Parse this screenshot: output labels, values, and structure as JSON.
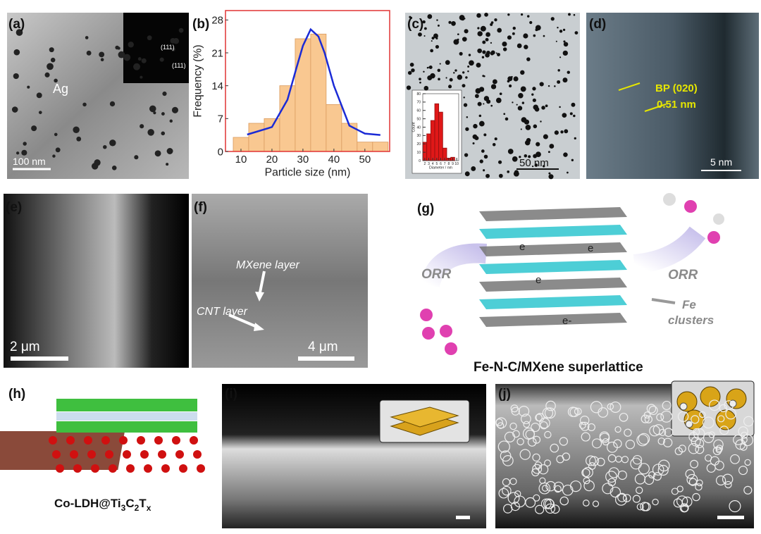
{
  "panels": {
    "a": {
      "label": "(a)",
      "material": "Ag",
      "scale": "100 nm",
      "spots": [
        "(111)",
        "(111)"
      ]
    },
    "b": {
      "label": "(b)",
      "chart": {
        "type": "histogram",
        "ylabel": "Frequency (%)",
        "xlabel": "Particle size (nm)",
        "bins": [
          7.5,
          12.5,
          17.5,
          22.5,
          27.5,
          32.5,
          37.5,
          42.5,
          47.5,
          52.5,
          57.5
        ],
        "values": [
          3,
          6,
          7,
          14,
          24,
          25,
          10,
          6,
          2,
          2
        ],
        "color": "#f9c891",
        "edge": "#d99a5e",
        "frame": "#e03434",
        "fit": {
          "x": [
            12,
            20,
            25,
            28,
            30,
            32.5,
            35,
            37,
            40,
            45,
            50,
            55
          ],
          "values": [
            3.6,
            5.2,
            11,
            18,
            22.5,
            26,
            24.5,
            21,
            14,
            5.5,
            3.8,
            3.5
          ],
          "color": "#1b2bd6"
        },
        "xlim": [
          5,
          58
        ],
        "ylim": [
          0,
          30
        ],
        "xticks": [
          10,
          20,
          30,
          40,
          50
        ],
        "yticks": [
          0,
          7,
          14,
          21,
          28
        ]
      }
    },
    "c": {
      "label": "(c)",
      "scale": "50 nm",
      "inset": {
        "type": "histogram",
        "ylabel": "Count",
        "xlabel": "Diameter / nm",
        "bins": [
          1.5,
          2.5,
          3.5,
          4.5,
          5.5,
          6.5,
          7.5,
          8.5,
          9.5
        ],
        "values": [
          22,
          32,
          48,
          68,
          58,
          15,
          3,
          4
        ],
        "color": "#e01818",
        "edge": "#901010",
        "xlim": [
          1.5,
          10.5
        ],
        "ylim": [
          0,
          80
        ],
        "xticks": [
          2,
          3,
          4,
          5,
          6,
          7,
          8,
          9,
          10
        ],
        "yticks": [
          0,
          10,
          20,
          30,
          40,
          50,
          60,
          70,
          80
        ]
      }
    },
    "d": {
      "label": "(d)",
      "plane": "BP (020)",
      "spacing": "0.51 nm",
      "scale": "5 nm"
    },
    "e": {
      "label": "(e)",
      "scale": "2 μm"
    },
    "f": {
      "label": "(f)",
      "layer1": "MXene layer",
      "layer2": "CNT layer",
      "scale": "4 μm"
    },
    "g": {
      "label": "(g)",
      "left": "ORR",
      "right": "ORR",
      "electrons": [
        "e",
        "e",
        "e",
        "e-"
      ],
      "fe": [
        "Fe",
        "clusters"
      ],
      "caption": "Fe-N-C/MXene superlattice"
    },
    "h": {
      "label": "(h)",
      "caption": [
        {
          "text": "Co-LDH@Ti",
          "sub": false
        },
        {
          "text": "3",
          "sub": true
        },
        {
          "text": "C",
          "sub": false
        },
        {
          "text": "2",
          "sub": true
        },
        {
          "text": "T",
          "sub": false
        },
        {
          "text": "x",
          "sub": true
        }
      ]
    },
    "i": {
      "label": "(i)"
    },
    "j": {
      "label": "(j)"
    }
  }
}
